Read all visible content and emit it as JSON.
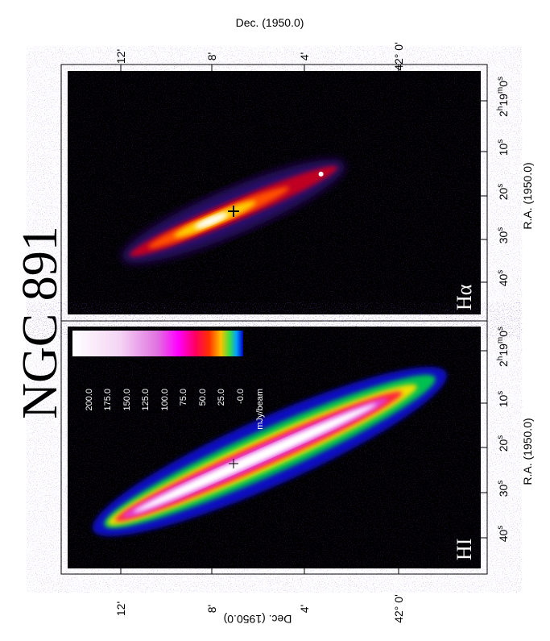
{
  "title": "NGC 891",
  "panels": [
    {
      "label": "Hα",
      "dec_axis": {
        "title": "Dec. (1950.0)",
        "ticks": [
          "12'",
          "8'",
          "4'",
          "42° 0'"
        ]
      },
      "ra_axis": {
        "title": "R.A. (1950.0)",
        "ticks": [
          [
            "40",
            "s"
          ],
          [
            "30",
            "s"
          ],
          [
            "20",
            "s"
          ],
          [
            "10",
            "s"
          ],
          [
            "2",
            "h",
            "19",
            "m",
            "0",
            "s"
          ]
        ]
      }
    },
    {
      "label": "HI",
      "dec_axis": {
        "title": "Dec. (1950.0)",
        "ticks": [
          "12'",
          "8'",
          "4'",
          "42° 0'"
        ]
      },
      "ra_axis": {
        "title": "R.A. (1950.0)",
        "ticks": [
          [
            "40",
            "s"
          ],
          [
            "30",
            "s"
          ],
          [
            "20",
            "s"
          ],
          [
            "10",
            "s"
          ],
          [
            "2",
            "h",
            "19",
            "m",
            "0",
            "s"
          ]
        ]
      }
    }
  ],
  "colorbar": {
    "ticks": [
      "200.0",
      "175.0",
      "150.0",
      "125.0",
      "100.0",
      "75.0",
      "50.0",
      "25.0",
      "-0.0"
    ],
    "unit": "mJy/beam"
  }
}
